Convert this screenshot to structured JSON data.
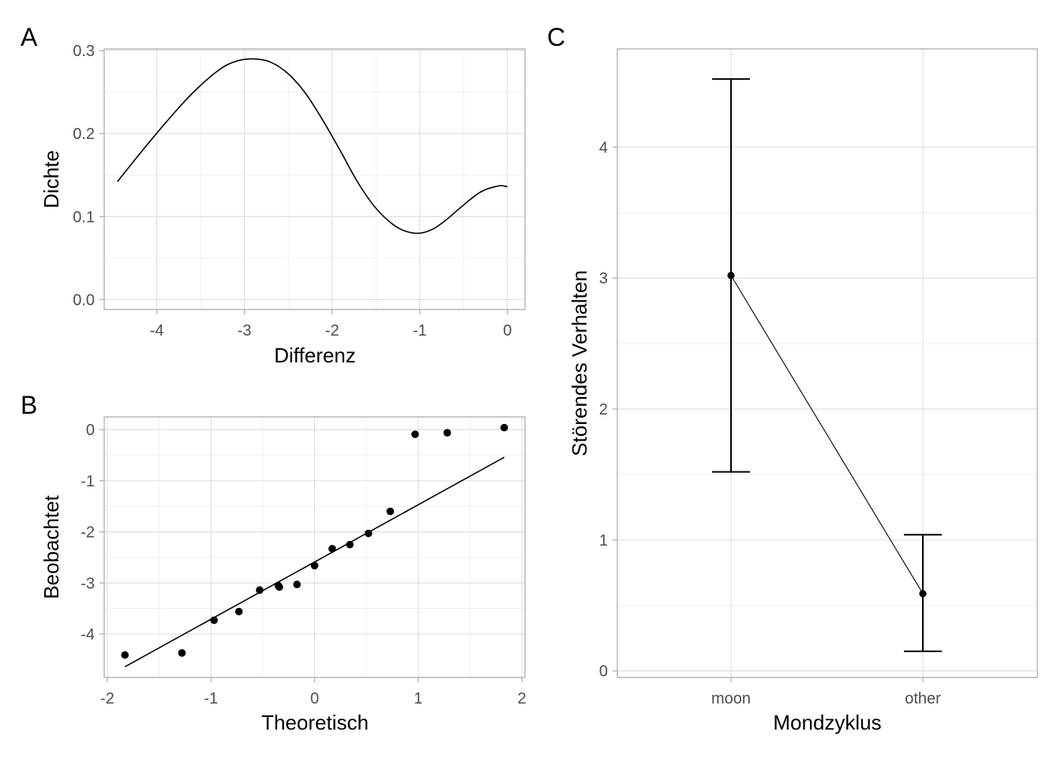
{
  "chart_data": [
    {
      "panel": "A",
      "type": "line",
      "xlabel": "Differenz",
      "ylabel": "Dichte",
      "xlim": [
        -4.45,
        0
      ],
      "ylim": [
        0,
        0.3
      ],
      "xticks": [
        -4,
        -3,
        -2,
        -1,
        0
      ],
      "xtick_labels": [
        "-4",
        "-3",
        "-2",
        "-1",
        "0"
      ],
      "yticks": [
        0.0,
        0.1,
        0.2,
        0.3
      ],
      "ytick_labels": [
        "0.0",
        "0.1",
        "0.2",
        "0.3"
      ],
      "grid": true,
      "series": [
        {
          "x": [
            -4.45,
            -4.2,
            -3.9,
            -3.6,
            -3.3,
            -3.1,
            -2.9,
            -2.7,
            -2.5,
            -2.3,
            -2.1,
            -1.9,
            -1.7,
            -1.5,
            -1.3,
            -1.15,
            -1.0,
            -0.85,
            -0.7,
            -0.5,
            -0.3,
            -0.1,
            0.0
          ],
          "y": [
            0.142,
            0.175,
            0.213,
            0.248,
            0.276,
            0.287,
            0.29,
            0.286,
            0.272,
            0.248,
            0.215,
            0.178,
            0.14,
            0.11,
            0.09,
            0.082,
            0.08,
            0.085,
            0.096,
            0.114,
            0.13,
            0.137,
            0.136
          ]
        }
      ]
    },
    {
      "panel": "B",
      "type": "scatter",
      "xlabel": "Theoretisch",
      "ylabel": "Beobachtet",
      "xlim": [
        -2.05,
        2.05
      ],
      "ylim": [
        -4.85,
        0.25
      ],
      "xticks": [
        -2,
        -1,
        0,
        1,
        2
      ],
      "xtick_labels": [
        "-2",
        "-1",
        "0",
        "1",
        "2"
      ],
      "yticks": [
        -4,
        -3,
        -2,
        -1,
        0
      ],
      "ytick_labels": [
        "-4",
        "-3",
        "-2",
        "-1",
        "0"
      ],
      "grid": true,
      "points": {
        "x": [
          -1.83,
          -1.28,
          -0.97,
          -0.73,
          -0.53,
          -0.35,
          -0.34,
          -0.17,
          0.0,
          0.17,
          0.34,
          0.52,
          0.73,
          0.97,
          1.28,
          1.83
        ],
        "y": [
          -4.41,
          -4.37,
          -3.73,
          -3.56,
          -3.14,
          -3.05,
          -3.08,
          -3.03,
          -2.66,
          -2.33,
          -2.25,
          -2.03,
          -1.6,
          -0.09,
          -0.06,
          0.04
        ]
      },
      "reference_line": {
        "x": [
          -1.83,
          1.83
        ],
        "y": [
          -4.64,
          -0.54
        ]
      }
    },
    {
      "panel": "C",
      "type": "line",
      "xlabel": "Mondzyklus",
      "ylabel": "Störendes Verhalten",
      "categories": [
        "moon",
        "other"
      ],
      "ylim": [
        -0.05,
        4.75
      ],
      "yticks": [
        0,
        1,
        2,
        3,
        4
      ],
      "ytick_labels": [
        "0",
        "1",
        "2",
        "3",
        "4"
      ],
      "grid": true,
      "series": [
        {
          "values": [
            3.02,
            0.59
          ],
          "lower": [
            1.52,
            0.15
          ],
          "upper": [
            4.52,
            1.04
          ]
        }
      ]
    }
  ],
  "panel_labels": [
    "A",
    "B",
    "C"
  ]
}
